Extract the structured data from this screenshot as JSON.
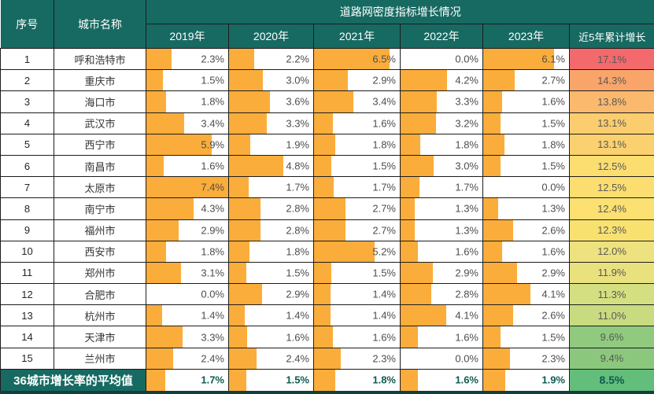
{
  "chart_data": {
    "type": "table",
    "title": "道路网密度指标增长情况",
    "unit": "%",
    "bar_max": 7.4,
    "header": {
      "no": "序号",
      "city": "城市名称",
      "group_title": "道路网密度指标增长情况",
      "years": [
        "2019年",
        "2020年",
        "2021年",
        "2022年",
        "2023年"
      ],
      "cumulative": "近5年累计增长"
    },
    "rows": [
      {
        "no": "1",
        "city": "呼和浩特市",
        "values": [
          "2.3%",
          "2.2%",
          "6.5%",
          "0.0%",
          "6.1%"
        ],
        "cumulative": "17.1%",
        "cum_color": "#F4696B"
      },
      {
        "no": "2",
        "city": "重庆市",
        "values": [
          "1.5%",
          "3.0%",
          "2.9%",
          "4.2%",
          "2.7%"
        ],
        "cumulative": "14.3%",
        "cum_color": "#F9A56A"
      },
      {
        "no": "3",
        "city": "海口市",
        "values": [
          "1.8%",
          "3.6%",
          "3.4%",
          "3.3%",
          "1.6%"
        ],
        "cumulative": "13.8%",
        "cum_color": "#FAB96D"
      },
      {
        "no": "4",
        "city": "武汉市",
        "values": [
          "3.4%",
          "3.3%",
          "1.6%",
          "3.2%",
          "1.5%"
        ],
        "cumulative": "13.1%",
        "cum_color": "#FBCD6F"
      },
      {
        "no": "5",
        "city": "西宁市",
        "values": [
          "5.9%",
          "1.9%",
          "1.8%",
          "1.8%",
          "1.8%"
        ],
        "cumulative": "13.1%",
        "cum_color": "#FBD06F"
      },
      {
        "no": "6",
        "city": "南昌市",
        "values": [
          "1.6%",
          "4.8%",
          "1.5%",
          "3.0%",
          "1.5%"
        ],
        "cumulative": "12.5%",
        "cum_color": "#FCDE70"
      },
      {
        "no": "7",
        "city": "太原市",
        "values": [
          "7.4%",
          "1.7%",
          "1.7%",
          "1.7%",
          "0.0%"
        ],
        "cumulative": "12.5%",
        "cum_color": "#FCDE70"
      },
      {
        "no": "8",
        "city": "南宁市",
        "values": [
          "4.3%",
          "2.8%",
          "2.7%",
          "1.3%",
          "1.3%"
        ],
        "cumulative": "12.4%",
        "cum_color": "#FCE071"
      },
      {
        "no": "9",
        "city": "福州市",
        "values": [
          "2.9%",
          "2.8%",
          "2.7%",
          "1.3%",
          "2.6%"
        ],
        "cumulative": "12.3%",
        "cum_color": "#F9E170"
      },
      {
        "no": "10",
        "city": "西安市",
        "values": [
          "1.8%",
          "1.8%",
          "5.2%",
          "1.6%",
          "1.6%"
        ],
        "cumulative": "12.0%",
        "cum_color": "#EDE27F"
      },
      {
        "no": "11",
        "city": "郑州市",
        "values": [
          "3.1%",
          "1.5%",
          "1.5%",
          "2.9%",
          "2.9%"
        ],
        "cumulative": "11.9%",
        "cum_color": "#E9E17E"
      },
      {
        "no": "12",
        "city": "合肥市",
        "values": [
          "0.0%",
          "2.9%",
          "1.4%",
          "2.8%",
          "4.1%"
        ],
        "cumulative": "11.3%",
        "cum_color": "#D4DF81"
      },
      {
        "no": "13",
        "city": "杭州市",
        "values": [
          "1.4%",
          "1.4%",
          "1.4%",
          "4.1%",
          "2.6%"
        ],
        "cumulative": "11.0%",
        "cum_color": "#C9DB80"
      },
      {
        "no": "14",
        "city": "天津市",
        "values": [
          "3.3%",
          "1.6%",
          "1.6%",
          "1.6%",
          "1.5%"
        ],
        "cumulative": "9.6%",
        "cum_color": "#8FCA7E"
      },
      {
        "no": "15",
        "city": "兰州市",
        "values": [
          "2.4%",
          "2.4%",
          "2.3%",
          "0.0%",
          "2.3%"
        ],
        "cumulative": "9.4%",
        "cum_color": "#8BC87D"
      }
    ],
    "footer": {
      "label": "36城市增长率的平均值",
      "values": [
        "1.7%",
        "1.5%",
        "1.8%",
        "1.6%",
        "1.9%"
      ],
      "cumulative": "8.5%",
      "cum_color": "#63BE7B"
    },
    "layout": {
      "bar_scale_note": "bar width proportional to value, 7.4% = full cell"
    }
  },
  "colors": {
    "header_bg": "#176A62",
    "bar": "#FBAD3B",
    "border": "#1C1C1C",
    "bottom": "#123F39",
    "value": "#4D4D4D",
    "footer_text": "#0F5A50"
  }
}
